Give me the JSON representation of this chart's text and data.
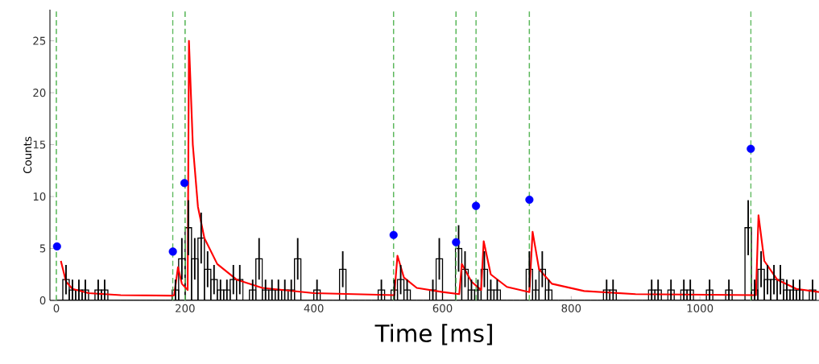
{
  "chart_data": {
    "type": "histogram",
    "xlabel": "Time [ms]",
    "ylabel": "Counts",
    "xlim": [
      -10,
      1185
    ],
    "ylim": [
      0,
      28
    ],
    "xticks": [
      0,
      200,
      400,
      600,
      800,
      1000
    ],
    "yticks": [
      0,
      5,
      10,
      15,
      20,
      25
    ],
    "series": [
      {
        "color": "#000000",
        "bins": [
          0,
          10,
          20,
          30,
          40,
          50,
          60,
          70,
          80,
          90,
          100,
          110,
          120,
          130,
          140,
          150,
          160,
          170,
          180,
          190,
          200,
          210,
          220,
          230,
          240,
          250,
          260,
          270,
          280,
          290,
          300,
          310,
          320,
          330,
          340,
          350,
          360,
          370,
          380,
          390,
          400,
          410,
          420,
          430,
          440,
          450,
          460,
          470,
          480,
          490,
          500,
          510,
          520,
          530,
          540,
          550,
          560,
          570,
          580,
          590,
          600,
          610,
          620,
          630,
          640,
          650,
          660,
          670,
          680,
          690,
          700,
          710,
          720,
          730,
          740,
          750,
          760,
          770,
          780,
          790,
          800,
          810,
          820,
          830,
          840,
          850,
          860,
          870,
          880,
          890,
          900,
          910,
          920,
          930,
          940,
          950,
          960,
          970,
          980,
          990,
          1000,
          1010,
          1020,
          1030,
          1040,
          1050,
          1060,
          1070,
          1080,
          1090,
          1100,
          1110,
          1120,
          1130,
          1140,
          1150,
          1160,
          1170,
          1180
        ],
        "values": [
          0,
          2,
          1,
          1,
          1,
          0,
          1,
          1,
          0,
          0,
          0,
          0,
          0,
          0,
          0,
          0,
          0,
          0,
          1,
          4,
          7,
          4,
          6,
          3,
          2,
          1,
          1,
          2,
          2,
          0,
          1,
          4,
          1,
          1,
          1,
          1,
          1,
          4,
          0,
          0,
          1,
          0,
          0,
          0,
          3,
          0,
          0,
          0,
          0,
          0,
          1,
          0,
          1,
          2,
          1,
          0,
          0,
          0,
          1,
          4,
          0,
          0,
          5,
          3,
          1,
          1,
          3,
          1,
          1,
          0,
          0,
          0,
          0,
          3,
          1,
          3,
          1,
          0,
          0,
          0,
          0,
          0,
          0,
          0,
          0,
          1,
          1,
          0,
          0,
          0,
          0,
          0,
          1,
          1,
          0,
          1,
          0,
          1,
          1,
          0,
          0,
          1,
          0,
          0,
          1,
          0,
          0,
          7,
          1,
          3,
          2,
          2,
          2,
          1,
          1,
          1,
          0,
          1
        ],
        "errors": [
          null,
          1.41,
          1,
          1,
          1,
          null,
          1,
          1,
          null,
          null,
          null,
          null,
          null,
          null,
          null,
          null,
          null,
          null,
          1,
          2,
          2.65,
          2,
          2.45,
          1.73,
          1.41,
          1,
          1,
          1.41,
          1.41,
          null,
          1,
          2,
          1,
          1,
          1,
          1,
          1,
          2,
          null,
          null,
          1,
          null,
          null,
          null,
          1.73,
          null,
          null,
          null,
          null,
          null,
          1,
          null,
          1,
          1.41,
          1,
          null,
          null,
          null,
          1,
          2,
          null,
          null,
          2.24,
          1.73,
          1,
          1,
          1.73,
          1,
          1,
          null,
          null,
          null,
          null,
          1.73,
          1,
          1.73,
          1,
          null,
          null,
          null,
          null,
          null,
          null,
          null,
          null,
          1,
          1,
          null,
          null,
          null,
          null,
          null,
          1,
          1,
          null,
          1,
          null,
          1,
          1,
          null,
          null,
          1,
          null,
          null,
          1,
          null,
          null,
          2.65,
          1,
          1.73,
          1.41,
          1.41,
          1.41,
          1,
          1,
          1,
          null,
          1
        ]
      },
      {
        "type": "line",
        "color": "#ff0000",
        "x": [
          7,
          15,
          25,
          50,
          100,
          180,
          183,
          189,
          195,
          204,
          206,
          212,
          220,
          230,
          250,
          280,
          320,
          400,
          525,
          530,
          540,
          560,
          600,
          626,
          630,
          645,
          660,
          664,
          675,
          700,
          735,
          740,
          750,
          770,
          820,
          900,
          1087,
          1091,
          1100,
          1120,
          1150,
          1185
        ],
        "values": [
          3.8,
          1.8,
          1.1,
          0.7,
          0.5,
          0.45,
          0.5,
          3.2,
          1.6,
          1.0,
          25,
          15,
          9,
          6,
          3.5,
          2,
          1.2,
          0.7,
          0.5,
          4.3,
          2.2,
          1.2,
          0.8,
          0.6,
          3.5,
          1.8,
          1.0,
          5.7,
          2.5,
          1.3,
          0.8,
          6.6,
          3.0,
          1.6,
          0.9,
          0.6,
          0.5,
          8.2,
          3.8,
          2.0,
          1.1,
          0.8
        ]
      },
      {
        "type": "scatter",
        "color": "#0000ff",
        "marker": "circle",
        "x": [
          1,
          181,
          199,
          524,
          621,
          652,
          735,
          1079
        ],
        "values": [
          5.2,
          4.7,
          11.3,
          6.3,
          5.6,
          9.1,
          9.7,
          14.6
        ]
      }
    ],
    "ref_lines": [
      {
        "axis": "x",
        "value": 0,
        "color": "#5cb85c",
        "line_style": "dashed"
      },
      {
        "axis": "x",
        "value": 181,
        "color": "#5cb85c",
        "line_style": "dashed"
      },
      {
        "axis": "x",
        "value": 200,
        "color": "#5cb85c",
        "line_style": "dashed"
      },
      {
        "axis": "x",
        "value": 524,
        "color": "#5cb85c",
        "line_style": "dashed"
      },
      {
        "axis": "x",
        "value": 621,
        "color": "#5cb85c",
        "line_style": "dashed"
      },
      {
        "axis": "x",
        "value": 652,
        "color": "#5cb85c",
        "line_style": "dashed"
      },
      {
        "axis": "x",
        "value": 735,
        "color": "#5cb85c",
        "line_style": "dashed"
      },
      {
        "axis": "x",
        "value": 1079,
        "color": "#5cb85c",
        "line_style": "dashed"
      }
    ]
  }
}
